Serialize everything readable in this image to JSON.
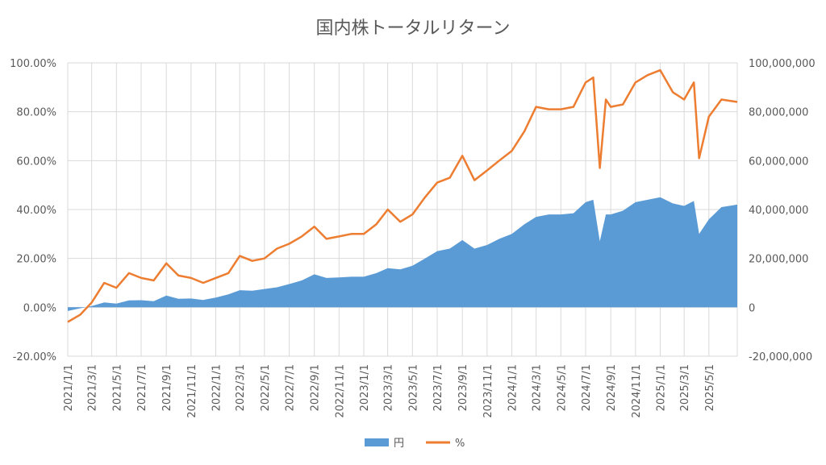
{
  "chart_data": {
    "type": "area",
    "title": "国内株トータルリターン",
    "x_tick_labels": [
      "2021/1/1",
      "2021/3/1",
      "2021/5/1",
      "2021/7/1",
      "2021/9/1",
      "2021/11/1",
      "2022/1/1",
      "2022/3/1",
      "2022/5/1",
      "2022/7/1",
      "2022/9/1",
      "2022/11/1",
      "2023/1/1",
      "2023/3/1",
      "2023/5/1",
      "2023/7/1",
      "2023/9/1",
      "2023/11/1",
      "2024/1/1",
      "2024/3/1",
      "2024/5/1",
      "2024/7/1",
      "2024/9/1",
      "2024/11/1",
      "2025/1/1",
      "2025/3/1",
      "2025/5/1"
    ],
    "x_range": [
      "2021/1/1",
      "2025/7/10"
    ],
    "y_left": {
      "range": [
        -0.2,
        1.0
      ],
      "tick_labels": [
        "100.00%",
        "80.00%",
        "60.00%",
        "40.00%",
        "20.00%",
        "0.00%",
        "-20.00%"
      ]
    },
    "y_right": {
      "range": [
        -20000000,
        100000000
      ],
      "tick_labels": [
        "100,000,000",
        "80,000,000",
        "60,000,000",
        "40,000,000",
        "20,000,000",
        "0",
        "-20,000,000"
      ],
      "negative_color": "#ff0000"
    },
    "grid": true,
    "legend_position": "bottom",
    "series": [
      {
        "name": "円",
        "type": "area",
        "axis": "right",
        "color": "#5b9bd5",
        "points": [
          [
            "2021/1/1",
            -1500000
          ],
          [
            "2021/2/1",
            -400000
          ],
          [
            "2021/3/1",
            500000
          ],
          [
            "2021/4/1",
            2000000
          ],
          [
            "2021/5/1",
            1500000
          ],
          [
            "2021/6/1",
            2800000
          ],
          [
            "2021/7/1",
            2900000
          ],
          [
            "2021/8/1",
            2500000
          ],
          [
            "2021/9/1",
            4800000
          ],
          [
            "2021/10/1",
            3500000
          ],
          [
            "2021/11/1",
            3600000
          ],
          [
            "2021/12/1",
            3000000
          ],
          [
            "2022/1/1",
            4000000
          ],
          [
            "2022/2/1",
            5300000
          ],
          [
            "2022/3/1",
            7000000
          ],
          [
            "2022/4/1",
            6800000
          ],
          [
            "2022/5/1",
            7500000
          ],
          [
            "2022/6/1",
            8200000
          ],
          [
            "2022/7/1",
            9500000
          ],
          [
            "2022/8/1",
            11000000
          ],
          [
            "2022/9/1",
            13500000
          ],
          [
            "2022/10/1",
            12000000
          ],
          [
            "2022/11/1",
            12200000
          ],
          [
            "2022/12/1",
            12500000
          ],
          [
            "2023/1/1",
            12500000
          ],
          [
            "2023/2/1",
            14000000
          ],
          [
            "2023/3/1",
            16000000
          ],
          [
            "2023/4/1",
            15500000
          ],
          [
            "2023/5/1",
            17000000
          ],
          [
            "2023/6/1",
            20000000
          ],
          [
            "2023/7/1",
            23000000
          ],
          [
            "2023/8/1",
            24000000
          ],
          [
            "2023/9/1",
            27500000
          ],
          [
            "2023/10/1",
            24000000
          ],
          [
            "2023/11/1",
            25500000
          ],
          [
            "2023/12/1",
            28000000
          ],
          [
            "2024/1/1",
            30000000
          ],
          [
            "2024/2/1",
            34000000
          ],
          [
            "2024/3/1",
            37000000
          ],
          [
            "2024/4/1",
            38000000
          ],
          [
            "2024/5/1",
            38000000
          ],
          [
            "2024/6/1",
            38500000
          ],
          [
            "2024/7/1",
            43000000
          ],
          [
            "2024/7/20",
            44000000
          ],
          [
            "2024/8/5",
            27000000
          ],
          [
            "2024/8/20",
            38000000
          ],
          [
            "2024/9/1",
            38000000
          ],
          [
            "2024/10/1",
            39500000
          ],
          [
            "2024/11/1",
            43000000
          ],
          [
            "2024/12/1",
            44000000
          ],
          [
            "2025/1/1",
            45000000
          ],
          [
            "2025/2/1",
            42500000
          ],
          [
            "2025/3/1",
            41500000
          ],
          [
            "2025/3/25",
            43500000
          ],
          [
            "2025/4/7",
            30000000
          ],
          [
            "2025/5/1",
            36000000
          ],
          [
            "2025/6/1",
            41000000
          ],
          [
            "2025/7/10",
            42000000
          ]
        ]
      },
      {
        "name": "%",
        "type": "line",
        "axis": "left",
        "color": "#ed7d31",
        "points": [
          [
            "2021/1/1",
            -0.06
          ],
          [
            "2021/2/1",
            -0.03
          ],
          [
            "2021/3/1",
            0.02
          ],
          [
            "2021/4/1",
            0.1
          ],
          [
            "2021/5/1",
            0.08
          ],
          [
            "2021/6/1",
            0.14
          ],
          [
            "2021/7/1",
            0.12
          ],
          [
            "2021/8/1",
            0.11
          ],
          [
            "2021/9/1",
            0.18
          ],
          [
            "2021/10/1",
            0.13
          ],
          [
            "2021/11/1",
            0.12
          ],
          [
            "2021/12/1",
            0.1
          ],
          [
            "2022/1/1",
            0.12
          ],
          [
            "2022/2/1",
            0.14
          ],
          [
            "2022/3/1",
            0.21
          ],
          [
            "2022/4/1",
            0.19
          ],
          [
            "2022/5/1",
            0.2
          ],
          [
            "2022/6/1",
            0.24
          ],
          [
            "2022/7/1",
            0.26
          ],
          [
            "2022/8/1",
            0.29
          ],
          [
            "2022/9/1",
            0.33
          ],
          [
            "2022/10/1",
            0.28
          ],
          [
            "2022/11/1",
            0.29
          ],
          [
            "2022/12/1",
            0.3
          ],
          [
            "2023/1/1",
            0.3
          ],
          [
            "2023/2/1",
            0.34
          ],
          [
            "2023/3/1",
            0.4
          ],
          [
            "2023/4/1",
            0.35
          ],
          [
            "2023/5/1",
            0.38
          ],
          [
            "2023/6/1",
            0.45
          ],
          [
            "2023/7/1",
            0.51
          ],
          [
            "2023/8/1",
            0.53
          ],
          [
            "2023/9/1",
            0.62
          ],
          [
            "2023/10/1",
            0.52
          ],
          [
            "2023/11/1",
            0.56
          ],
          [
            "2023/12/1",
            0.6
          ],
          [
            "2024/1/1",
            0.64
          ],
          [
            "2024/2/1",
            0.72
          ],
          [
            "2024/3/1",
            0.82
          ],
          [
            "2024/4/1",
            0.81
          ],
          [
            "2024/5/1",
            0.81
          ],
          [
            "2024/6/1",
            0.82
          ],
          [
            "2024/7/1",
            0.92
          ],
          [
            "2024/7/20",
            0.94
          ],
          [
            "2024/8/5",
            0.57
          ],
          [
            "2024/8/20",
            0.85
          ],
          [
            "2024/9/1",
            0.82
          ],
          [
            "2024/10/1",
            0.83
          ],
          [
            "2024/11/1",
            0.92
          ],
          [
            "2024/12/1",
            0.95
          ],
          [
            "2025/1/1",
            0.97
          ],
          [
            "2025/2/1",
            0.88
          ],
          [
            "2025/3/1",
            0.85
          ],
          [
            "2025/3/25",
            0.92
          ],
          [
            "2025/4/7",
            0.61
          ],
          [
            "2025/5/1",
            0.78
          ],
          [
            "2025/6/1",
            0.85
          ],
          [
            "2025/7/10",
            0.84
          ]
        ]
      }
    ]
  }
}
